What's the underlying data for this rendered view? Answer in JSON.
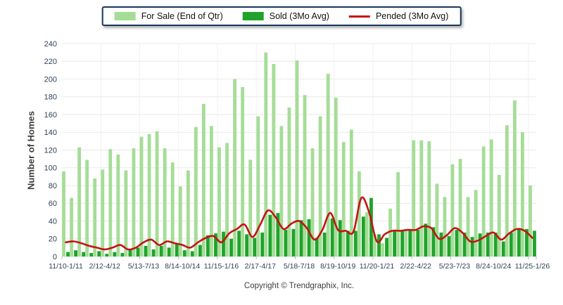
{
  "chart_data": {
    "type": "bar",
    "title": "",
    "ylabel": "Number of Homes",
    "footer": "Copyright © Trendgraphix, Inc.",
    "ylim": [
      0,
      240
    ],
    "ytick_step": 20,
    "n_groups": 61,
    "x_label_every": 5,
    "x_tick_labels": [
      "11/10-1/11",
      "2/12-4/12",
      "5/13-7/13",
      "8/14-10/14",
      "11/15-1/16",
      "2/17-4/17",
      "5/18-7/18",
      "8/19-10/19",
      "11/20-1/21",
      "2/22-4/22",
      "5/23-7/23",
      "8/24-10/24",
      "11/25-1/26"
    ],
    "grid": true,
    "legend_position": "top",
    "colors": {
      "for_sale": "#A5DD96",
      "sold": "#1FA32B",
      "pended": "#C41313",
      "gridline": "#E9E9E9",
      "vgridline": "#F0F0F0",
      "tick_text": "#2F4157"
    },
    "series": [
      {
        "name": "For Sale (End of Qtr)",
        "type": "bar",
        "color": "#A5DD96",
        "values": [
          96,
          66,
          123,
          109,
          88,
          98,
          121,
          115,
          97,
          122,
          135,
          138,
          141,
          122,
          106,
          79,
          97,
          146,
          172,
          147,
          123,
          128,
          200,
          191,
          109,
          158,
          230,
          217,
          147,
          168,
          221,
          182,
          122,
          158,
          206,
          179,
          129,
          143,
          96,
          50,
          25,
          15,
          54,
          95,
          31,
          131,
          131,
          130,
          82,
          67,
          104,
          110,
          67,
          75,
          124,
          132,
          92,
          148,
          176,
          140,
          80
        ]
      },
      {
        "name": "Sold (3Mo Avg)",
        "type": "bar",
        "color": "#1FA32B",
        "values": [
          5,
          7,
          5,
          4,
          6,
          3,
          5,
          4,
          8,
          10,
          12,
          8,
          12,
          10,
          14,
          7,
          6,
          13,
          24,
          26,
          28,
          20,
          29,
          25,
          21,
          27,
          47,
          49,
          30,
          31,
          41,
          42,
          21,
          27,
          43,
          41,
          29,
          29,
          45,
          66,
          25,
          21,
          30,
          30,
          31,
          30,
          37,
          33,
          27,
          23,
          30,
          27,
          22,
          26,
          27,
          27,
          17,
          27,
          31,
          31,
          29
        ]
      },
      {
        "name": "Pended (3Mo Avg)",
        "type": "line",
        "color": "#C41313",
        "values": [
          16,
          17,
          15,
          12,
          10,
          8,
          10,
          13,
          8,
          10,
          16,
          19,
          13,
          17,
          15,
          13,
          10,
          16,
          21,
          23,
          16,
          26,
          31,
          36,
          22,
          36,
          52,
          44,
          31,
          37,
          40,
          32,
          19,
          30,
          49,
          30,
          29,
          28,
          66,
          50,
          17,
          25,
          29,
          29,
          30,
          30,
          34,
          32,
          20,
          24,
          32,
          27,
          17,
          18,
          23,
          27,
          19,
          26,
          31,
          29,
          21
        ]
      }
    ]
  }
}
